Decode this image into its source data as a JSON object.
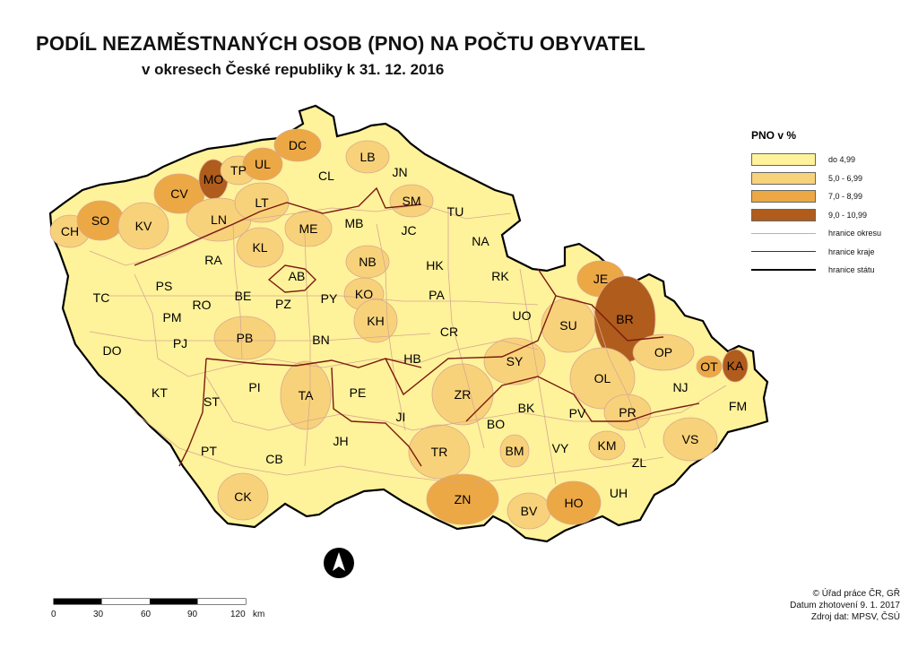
{
  "title": "PODÍL NEZAMĚSTNANÝCH OSOB (PNO) NA POČTU OBYVATEL",
  "subtitle": "v okresech České republiky k 31. 12. 2016",
  "legend": {
    "title": "PNO v %",
    "classes": [
      {
        "label": "do 4,99",
        "color": "#fef29a"
      },
      {
        "label": "5,0 - 6,99",
        "color": "#f8d27a"
      },
      {
        "label": "7,0 - 8,99",
        "color": "#eca845"
      },
      {
        "label": "9,0 - 10,99",
        "color": "#b05c1c"
      }
    ],
    "lines": [
      {
        "label": "hranice okresu",
        "color": "#d7a890"
      },
      {
        "label": "hranice kraje",
        "color": "#7a1a10"
      },
      {
        "label": "hranice státu",
        "color": "#000000"
      }
    ]
  },
  "districts": [
    {
      "code": "CH",
      "class": 1
    },
    {
      "code": "SO",
      "class": 2
    },
    {
      "code": "KV",
      "class": 1
    },
    {
      "code": "CV",
      "class": 2
    },
    {
      "code": "MO",
      "class": 3
    },
    {
      "code": "TP",
      "class": 1
    },
    {
      "code": "UL",
      "class": 2
    },
    {
      "code": "DC",
      "class": 2
    },
    {
      "code": "LN",
      "class": 1
    },
    {
      "code": "LT",
      "class": 1
    },
    {
      "code": "CL",
      "class": 0
    },
    {
      "code": "LB",
      "class": 1
    },
    {
      "code": "JN",
      "class": 0
    },
    {
      "code": "SM",
      "class": 1
    },
    {
      "code": "MB",
      "class": 0
    },
    {
      "code": "ME",
      "class": 1
    },
    {
      "code": "KL",
      "class": 1
    },
    {
      "code": "RA",
      "class": 0
    },
    {
      "code": "AB",
      "class": 0
    },
    {
      "code": "JC",
      "class": 0
    },
    {
      "code": "TU",
      "class": 0
    },
    {
      "code": "NA",
      "class": 0
    },
    {
      "code": "NB",
      "class": 1
    },
    {
      "code": "HK",
      "class": 0
    },
    {
      "code": "RK",
      "class": 0
    },
    {
      "code": "TC",
      "class": 0
    },
    {
      "code": "PS",
      "class": 0
    },
    {
      "code": "BE",
      "class": 0
    },
    {
      "code": "PZ",
      "class": 0
    },
    {
      "code": "PY",
      "class": 0
    },
    {
      "code": "KO",
      "class": 1
    },
    {
      "code": "PA",
      "class": 0
    },
    {
      "code": "RO",
      "class": 0
    },
    {
      "code": "PM",
      "class": 0
    },
    {
      "code": "PJ",
      "class": 0
    },
    {
      "code": "KH",
      "class": 1
    },
    {
      "code": "UO",
      "class": 0
    },
    {
      "code": "SU",
      "class": 1
    },
    {
      "code": "JE",
      "class": 2
    },
    {
      "code": "BR",
      "class": 3
    },
    {
      "code": "DO",
      "class": 0
    },
    {
      "code": "PB",
      "class": 1
    },
    {
      "code": "BN",
      "class": 0
    },
    {
      "code": "CR",
      "class": 0
    },
    {
      "code": "HB",
      "class": 0
    },
    {
      "code": "SY",
      "class": 1
    },
    {
      "code": "OP",
      "class": 1
    },
    {
      "code": "OT",
      "class": 2
    },
    {
      "code": "KA",
      "class": 3
    },
    {
      "code": "KT",
      "class": 0
    },
    {
      "code": "ST",
      "class": 0
    },
    {
      "code": "PI",
      "class": 0
    },
    {
      "code": "TA",
      "class": 1
    },
    {
      "code": "PE",
      "class": 0
    },
    {
      "code": "ZR",
      "class": 1
    },
    {
      "code": "OL",
      "class": 1
    },
    {
      "code": "NJ",
      "class": 0
    },
    {
      "code": "FM",
      "class": 0
    },
    {
      "code": "JI",
      "class": 0
    },
    {
      "code": "BK",
      "class": 0
    },
    {
      "code": "BO",
      "class": 0
    },
    {
      "code": "PV",
      "class": 0
    },
    {
      "code": "PR",
      "class": 1
    },
    {
      "code": "VS",
      "class": 1
    },
    {
      "code": "PT",
      "class": 0
    },
    {
      "code": "JH",
      "class": 0
    },
    {
      "code": "CB",
      "class": 0
    },
    {
      "code": "TR",
      "class": 1
    },
    {
      "code": "BM",
      "class": 1
    },
    {
      "code": "VY",
      "class": 0
    },
    {
      "code": "KM",
      "class": 1
    },
    {
      "code": "ZL",
      "class": 0
    },
    {
      "code": "CK",
      "class": 1
    },
    {
      "code": "ZN",
      "class": 2
    },
    {
      "code": "BV",
      "class": 1
    },
    {
      "code": "HO",
      "class": 2
    },
    {
      "code": "UH",
      "class": 0
    }
  ],
  "scale_bar": {
    "ticks": [
      "0",
      "30",
      "60",
      "90",
      "120"
    ],
    "unit": "km"
  },
  "credits": [
    "© Úřad práce ČR, GŘ",
    "Datum zhotovení 9. 1. 2017",
    "Zdroj dat: MPSV, ČSÚ"
  ],
  "north_arrow_icon": "north-arrow-icon"
}
